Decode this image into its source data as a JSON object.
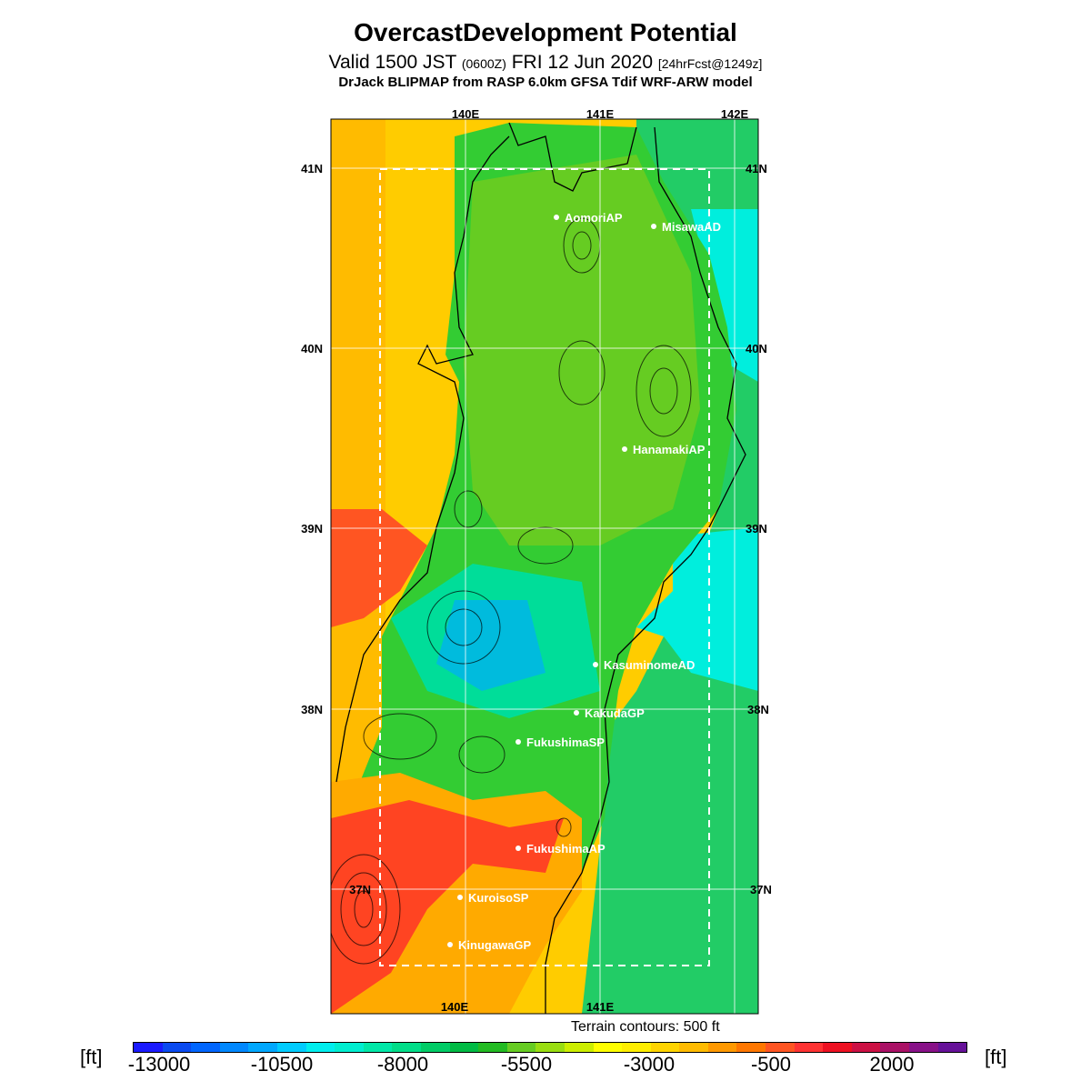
{
  "title": "OvercastDevelopment Potential",
  "subtitle": {
    "valid": "Valid 1500 JST",
    "utc": "(0600Z)",
    "date": "FRI 12 Jun 2020",
    "forecast": "[24hrFcst@1249z]"
  },
  "model_line": "DrJack BLIPMAP from RASP 6.0km GFSA Tdif WRF-ARW model",
  "map": {
    "lon_labels_top": [
      "140E",
      "141E",
      "142E"
    ],
    "lon_labels_bottom": [
      "140E",
      "141E"
    ],
    "lat_labels_left": [
      "41N",
      "40N",
      "39N",
      "38N",
      "37N"
    ],
    "lat_labels_right": [
      "41N",
      "40N",
      "39N",
      "38N",
      "37N"
    ],
    "stations": [
      "AomoriAP",
      "MisawaAD",
      "HanamakiAP",
      "KasuminomeAD",
      "KakudaGP",
      "FukushimaSP",
      "FukushimaAP",
      "KuroisoSP",
      "KinugawaGP"
    ],
    "terrain_note": "Terrain contours: 500 ft"
  },
  "colorbar": {
    "unit": "[ft]",
    "ticks": [
      "-13000",
      "-10500",
      "-8000",
      "-5500",
      "-3000",
      "-500",
      "2000"
    ],
    "colors": [
      "#1a1aff",
      "#0a4af0",
      "#0066ff",
      "#0088ff",
      "#00a8ff",
      "#00ccff",
      "#00eeee",
      "#00eed0",
      "#00e8a8",
      "#00dd88",
      "#00cc66",
      "#00bb44",
      "#22bb22",
      "#66cc22",
      "#99dd11",
      "#ccee00",
      "#ffff00",
      "#ffee00",
      "#ffd400",
      "#ffbb00",
      "#ff9900",
      "#ff7700",
      "#ff5522",
      "#ff3333",
      "#ee1122",
      "#cc1144",
      "#aa1166",
      "#881188",
      "#661199"
    ]
  }
}
